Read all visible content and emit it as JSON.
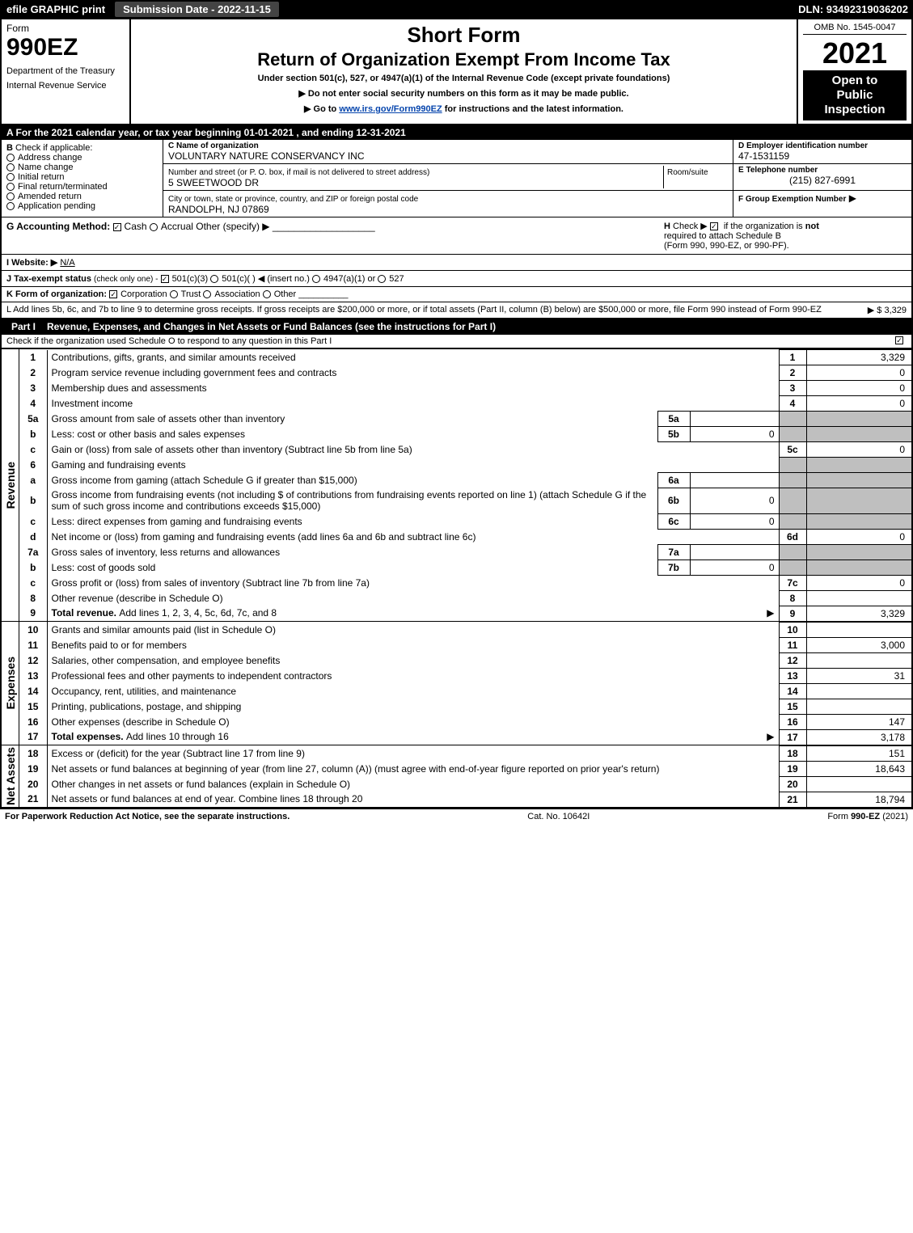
{
  "topbar": {
    "efile": "efile GRAPHIC print",
    "submission": "Submission Date - 2022-11-15",
    "dln": "DLN: 93492319036202"
  },
  "header": {
    "form_label": "Form",
    "form_number": "990EZ",
    "dept1": "Department of the Treasury",
    "dept2": "Internal Revenue Service",
    "short_form": "Short Form",
    "title": "Return of Organization Exempt From Income Tax",
    "under_section": "Under section 501(c), 527, or 4947(a)(1) of the Internal Revenue Code (except private foundations)",
    "no_ssn": "▶ Do not enter social security numbers on this form as it may be made public.",
    "goto": "▶ Go to www.irs.gov/Form990EZ for instructions and the latest information.",
    "goto_link": "www.irs.gov/Form990EZ",
    "omb": "OMB No. 1545-0047",
    "year": "2021",
    "open1": "Open to",
    "open2": "Public",
    "open3": "Inspection"
  },
  "lineA": "A  For the 2021 calendar year, or tax year beginning 01-01-2021 , and ending 12-31-2021",
  "sectionB": {
    "label": "B",
    "check_label": "Check if applicable:",
    "opts": [
      "Address change",
      "Name change",
      "Initial return",
      "Final return/terminated",
      "Amended return",
      "Application pending"
    ]
  },
  "sectionC": {
    "label": "C Name of organization",
    "name": "VOLUNTARY NATURE CONSERVANCY INC",
    "street_label": "Number and street (or P. O. box, if mail is not delivered to street address)",
    "room_label": "Room/suite",
    "street": "5 SWEETWOOD DR",
    "city_label": "City or town, state or province, country, and ZIP or foreign postal code",
    "city": "RANDOLPH, NJ  07869"
  },
  "sectionD": {
    "label": "D Employer identification number",
    "ein": "47-1531159"
  },
  "sectionE": {
    "label": "E Telephone number",
    "phone": "(215) 827-6991"
  },
  "sectionF": {
    "label": "F Group Exemption Number",
    "arrow": "▶"
  },
  "sectionG": {
    "label": "G Accounting Method:",
    "cash": "Cash",
    "accrual": "Accrual",
    "other": "Other (specify) ▶"
  },
  "sectionH": {
    "label": "H",
    "text1": "Check ▶",
    "text2": "if the organization is",
    "not": "not",
    "text3": "required to attach Schedule B",
    "text4": "(Form 990, 990-EZ, or 990-PF)."
  },
  "sectionI": {
    "label": "I Website: ▶",
    "value": "N/A"
  },
  "sectionJ": {
    "label": "J Tax-exempt status",
    "sub": "(check only one) -",
    "o1": "501(c)(3)",
    "o2": "501(c)(  )",
    "insert": "◀ (insert no.)",
    "o3": "4947(a)(1) or",
    "o4": "527"
  },
  "sectionK": {
    "label": "K Form of organization:",
    "o1": "Corporation",
    "o2": "Trust",
    "o3": "Association",
    "o4": "Other"
  },
  "sectionL": {
    "text": "L Add lines 5b, 6c, and 7b to line 9 to determine gross receipts. If gross receipts are $200,000 or more, or if total assets (Part II, column (B) below) are $500,000 or more, file Form 990 instead of Form 990-EZ",
    "amount": "▶ $ 3,329"
  },
  "part1": {
    "num": "Part I",
    "title": "Revenue, Expenses, and Changes in Net Assets or Fund Balances",
    "sub": "(see the instructions for Part I)",
    "checkrow": "Check if the organization used Schedule O to respond to any question in this Part I"
  },
  "sidebar": {
    "rev": "Revenue",
    "exp": "Expenses",
    "net": "Net Assets"
  },
  "revenue_rows": [
    {
      "n": "1",
      "d": "Contributions, gifts, grants, and similar amounts received",
      "box": "1",
      "v": "3,329"
    },
    {
      "n": "2",
      "d": "Program service revenue including government fees and contracts",
      "box": "2",
      "v": "0"
    },
    {
      "n": "3",
      "d": "Membership dues and assessments",
      "box": "3",
      "v": "0"
    },
    {
      "n": "4",
      "d": "Investment income",
      "box": "4",
      "v": "0"
    },
    {
      "n": "5a",
      "d": "Gross amount from sale of assets other than inventory",
      "mid": "5a",
      "midv": ""
    },
    {
      "n": "b",
      "d": "Less: cost or other basis and sales expenses",
      "mid": "5b",
      "midv": "0"
    },
    {
      "n": "c",
      "d": "Gain or (loss) from sale of assets other than inventory (Subtract line 5b from line 5a)",
      "box": "5c",
      "v": "0"
    },
    {
      "n": "6",
      "d": "Gaming and fundraising events"
    },
    {
      "n": "a",
      "d": "Gross income from gaming (attach Schedule G if greater than $15,000)",
      "mid": "6a",
      "midv": ""
    },
    {
      "n": "b",
      "d": "Gross income from fundraising events (not including $                            of contributions from fundraising events reported on line 1) (attach Schedule G if the sum of such gross income and contributions exceeds $15,000)",
      "mid": "6b",
      "midv": "0"
    },
    {
      "n": "c",
      "d": "Less: direct expenses from gaming and fundraising events",
      "mid": "6c",
      "midv": "0"
    },
    {
      "n": "d",
      "d": "Net income or (loss) from gaming and fundraising events (add lines 6a and 6b and subtract line 6c)",
      "box": "6d",
      "v": "0"
    },
    {
      "n": "7a",
      "d": "Gross sales of inventory, less returns and allowances",
      "mid": "7a",
      "midv": ""
    },
    {
      "n": "b",
      "d": "Less: cost of goods sold",
      "mid": "7b",
      "midv": "0"
    },
    {
      "n": "c",
      "d": "Gross profit or (loss) from sales of inventory (Subtract line 7b from line 7a)",
      "box": "7c",
      "v": "0"
    },
    {
      "n": "8",
      "d": "Other revenue (describe in Schedule O)",
      "box": "8",
      "v": ""
    },
    {
      "n": "9",
      "d": "Total revenue. Add lines 1, 2, 3, 4, 5c, 6d, 7c, and 8",
      "box": "9",
      "v": "3,329",
      "bold": true,
      "arrow": true
    }
  ],
  "expense_rows": [
    {
      "n": "10",
      "d": "Grants and similar amounts paid (list in Schedule O)",
      "box": "10",
      "v": ""
    },
    {
      "n": "11",
      "d": "Benefits paid to or for members",
      "box": "11",
      "v": "3,000"
    },
    {
      "n": "12",
      "d": "Salaries, other compensation, and employee benefits",
      "box": "12",
      "v": ""
    },
    {
      "n": "13",
      "d": "Professional fees and other payments to independent contractors",
      "box": "13",
      "v": "31"
    },
    {
      "n": "14",
      "d": "Occupancy, rent, utilities, and maintenance",
      "box": "14",
      "v": ""
    },
    {
      "n": "15",
      "d": "Printing, publications, postage, and shipping",
      "box": "15",
      "v": ""
    },
    {
      "n": "16",
      "d": "Other expenses (describe in Schedule O)",
      "box": "16",
      "v": "147"
    },
    {
      "n": "17",
      "d": "Total expenses. Add lines 10 through 16",
      "box": "17",
      "v": "3,178",
      "bold": true,
      "arrow": true
    }
  ],
  "net_rows": [
    {
      "n": "18",
      "d": "Excess or (deficit) for the year (Subtract line 17 from line 9)",
      "box": "18",
      "v": "151"
    },
    {
      "n": "19",
      "d": "Net assets or fund balances at beginning of year (from line 27, column (A)) (must agree with end-of-year figure reported on prior year's return)",
      "box": "19",
      "v": "18,643"
    },
    {
      "n": "20",
      "d": "Other changes in net assets or fund balances (explain in Schedule O)",
      "box": "20",
      "v": ""
    },
    {
      "n": "21",
      "d": "Net assets or fund balances at end of year. Combine lines 18 through 20",
      "box": "21",
      "v": "18,794"
    }
  ],
  "footer": {
    "left": "For Paperwork Reduction Act Notice, see the separate instructions.",
    "mid": "Cat. No. 10642I",
    "right_pre": "Form ",
    "right_bold": "990-EZ",
    "right_post": " (2021)"
  }
}
